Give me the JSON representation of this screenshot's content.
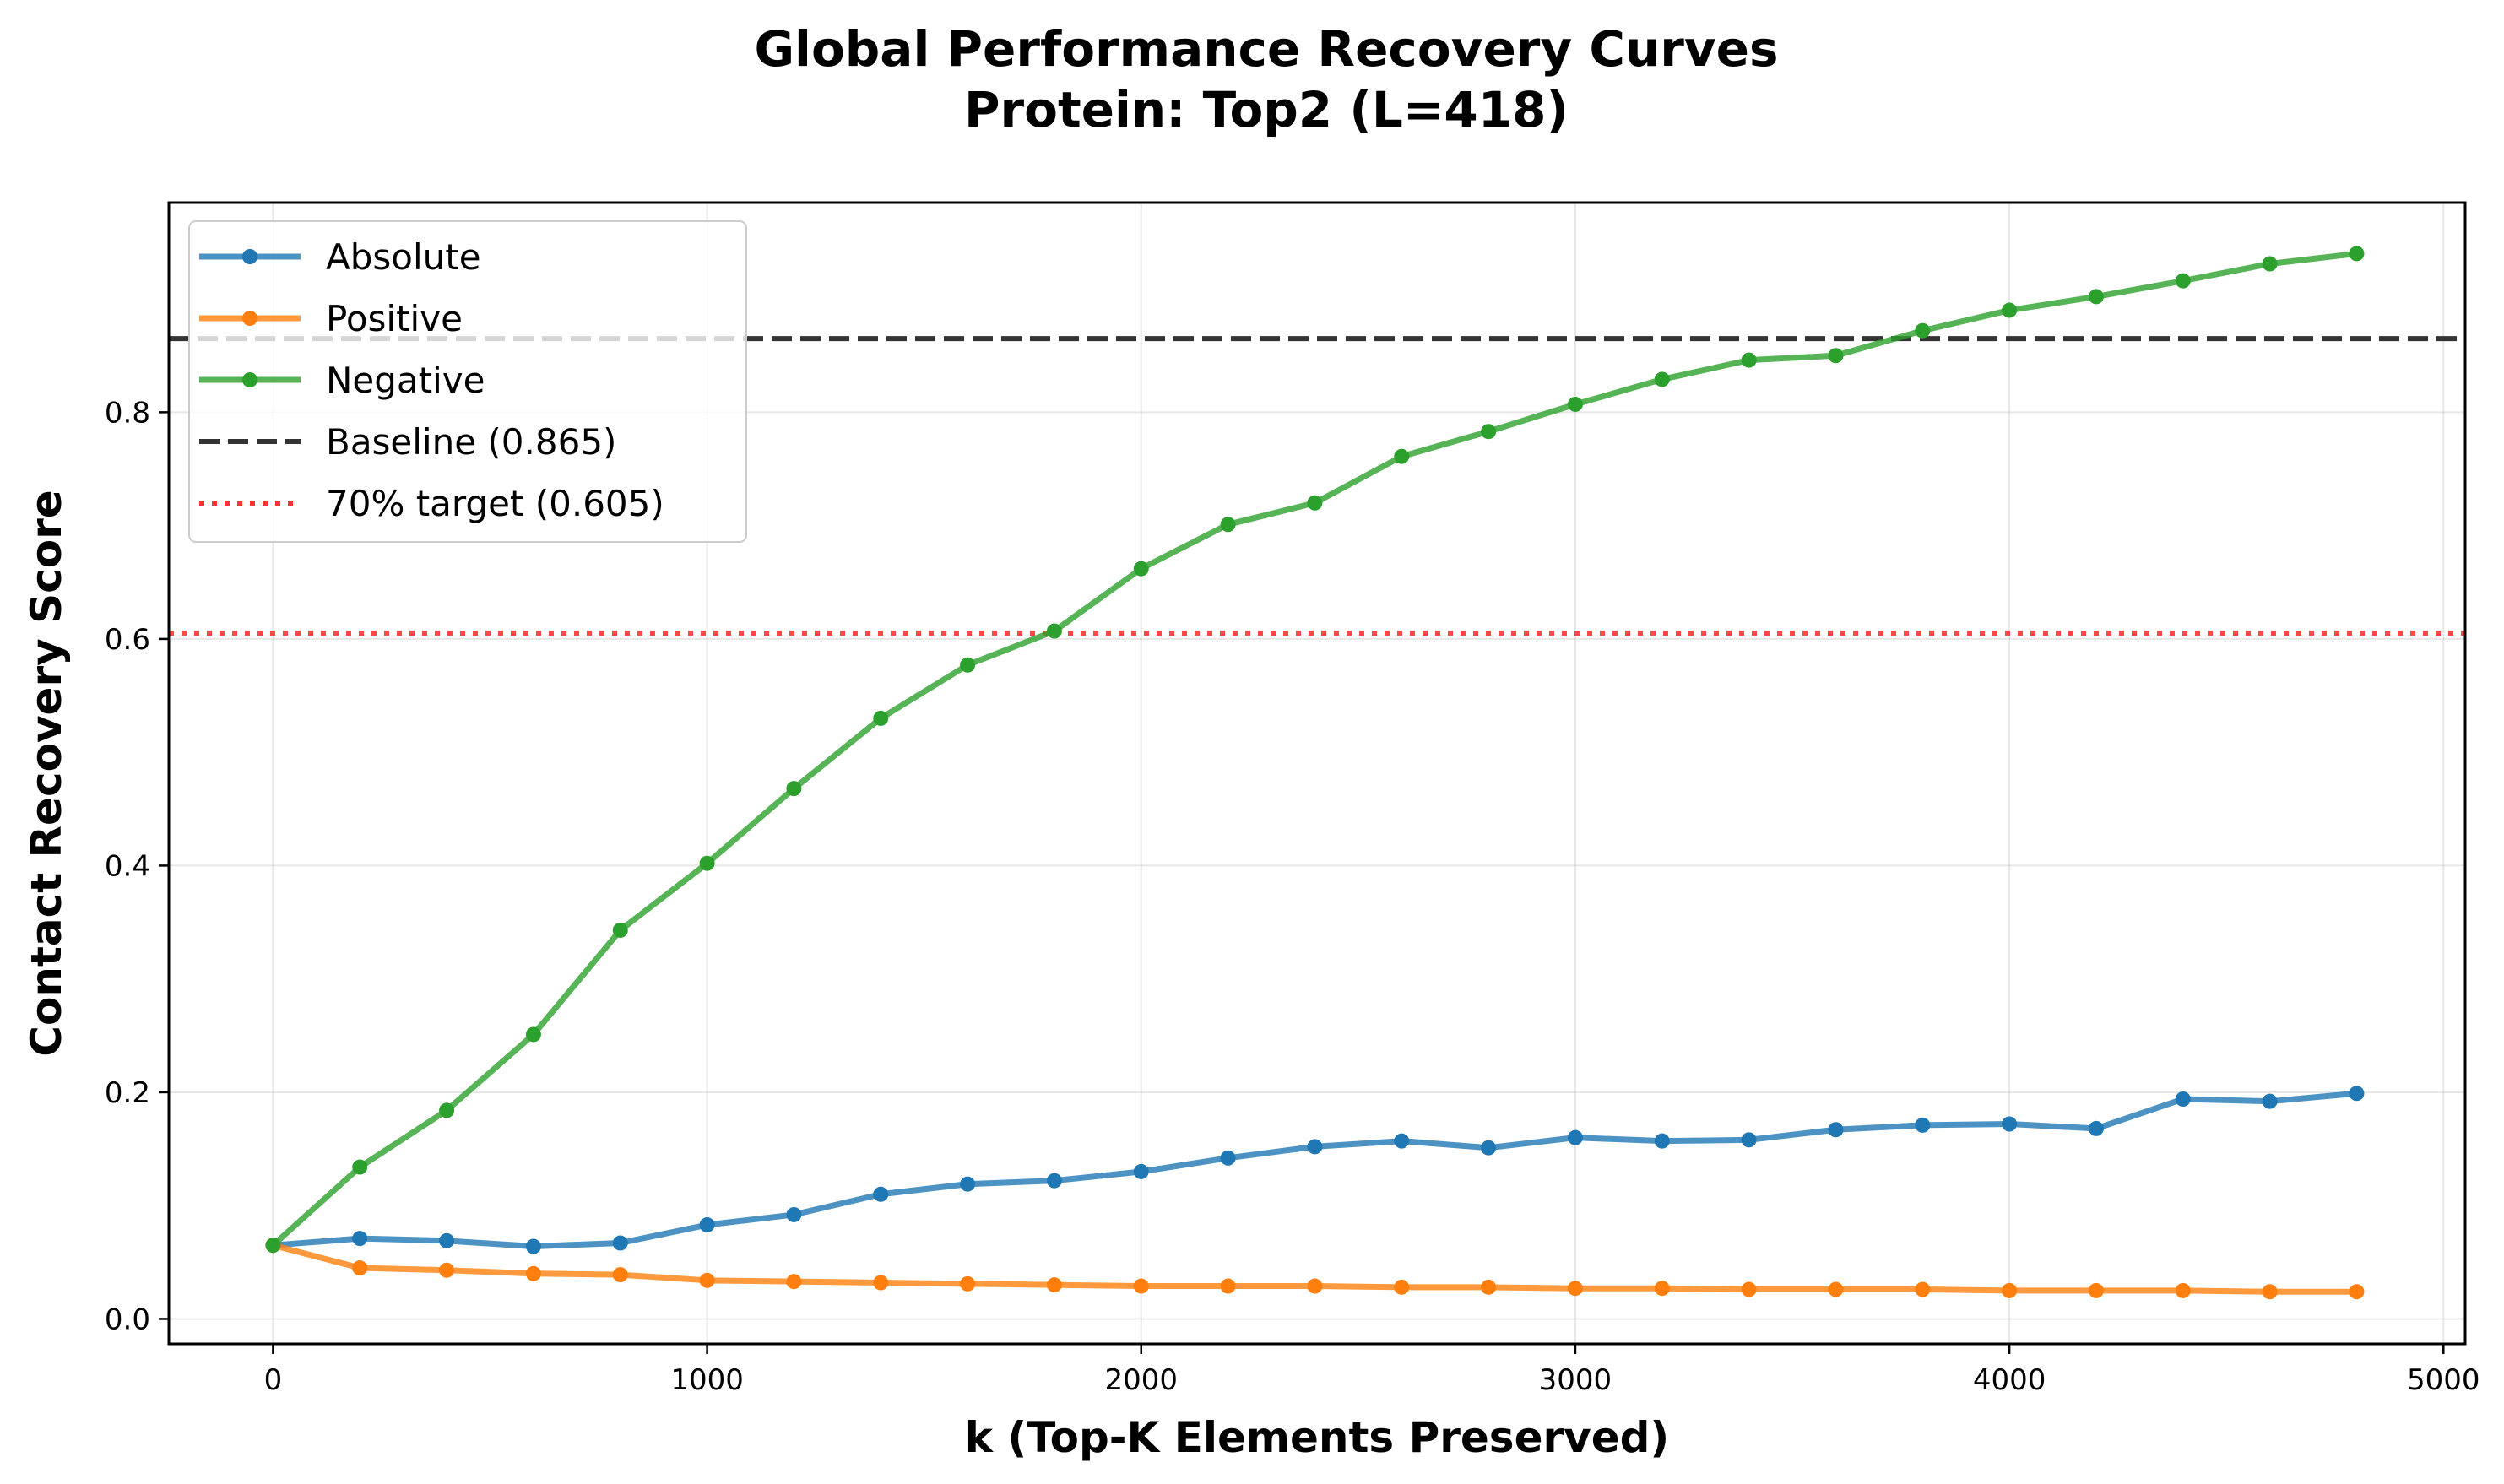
{
  "chart_data": {
    "type": "line",
    "title": "Global Performance Recovery Curves",
    "subtitle": "Protein: Top2 (L=418)",
    "xlabel": "k (Top-K Elements Preserved)",
    "ylabel": "Contact Recovery Score",
    "xlim": [
      -240,
      5050
    ],
    "ylim": [
      -0.022,
      0.985
    ],
    "xticks": [
      0,
      1000,
      2000,
      3000,
      4000,
      5000
    ],
    "yticks": [
      0.0,
      0.2,
      0.4,
      0.6,
      0.8
    ],
    "xtick_labels": [
      "0",
      "1000",
      "2000",
      "3000",
      "4000",
      "5000"
    ],
    "ytick_labels": [
      "0.0",
      "0.2",
      "0.4",
      "0.6",
      "0.8"
    ],
    "grid": true,
    "legend_position": "upper-left",
    "x": [
      0,
      200,
      400,
      600,
      800,
      1000,
      1200,
      1400,
      1600,
      1800,
      2000,
      2200,
      2400,
      2600,
      2800,
      3000,
      3200,
      3400,
      3600,
      3800,
      4000,
      4200,
      4400,
      4600,
      4800
    ],
    "series": [
      {
        "name": "Absolute",
        "color": "#1f77b4",
        "values": [
          0.065,
          0.071,
          0.069,
          0.064,
          0.067,
          0.083,
          0.092,
          0.11,
          0.119,
          0.122,
          0.13,
          0.142,
          0.152,
          0.157,
          0.151,
          0.16,
          0.157,
          0.158,
          0.167,
          0.171,
          0.172,
          0.168,
          0.194,
          0.192,
          0.199
        ]
      },
      {
        "name": "Positive",
        "color": "#ff7f0e",
        "values": [
          0.065,
          0.045,
          0.043,
          0.04,
          0.039,
          0.034,
          0.033,
          0.032,
          0.031,
          0.03,
          0.029,
          0.029,
          0.029,
          0.028,
          0.028,
          0.027,
          0.027,
          0.026,
          0.026,
          0.026,
          0.025,
          0.025,
          0.025,
          0.024,
          0.024
        ]
      },
      {
        "name": "Negative",
        "color": "#2ca02c",
        "values": [
          0.065,
          0.134,
          0.184,
          0.251,
          0.343,
          0.402,
          0.468,
          0.53,
          0.577,
          0.607,
          0.662,
          0.701,
          0.72,
          0.761,
          0.783,
          0.807,
          0.829,
          0.846,
          0.85,
          0.872,
          0.89,
          0.902,
          0.916,
          0.931,
          0.94
        ]
      }
    ],
    "reference_lines": [
      {
        "name": "Baseline (0.865)",
        "value": 0.865,
        "color": "#333333",
        "style": "dashed"
      },
      {
        "name": "70% target (0.605)",
        "value": 0.605,
        "color": "#ff3333",
        "style": "dotted"
      }
    ]
  }
}
